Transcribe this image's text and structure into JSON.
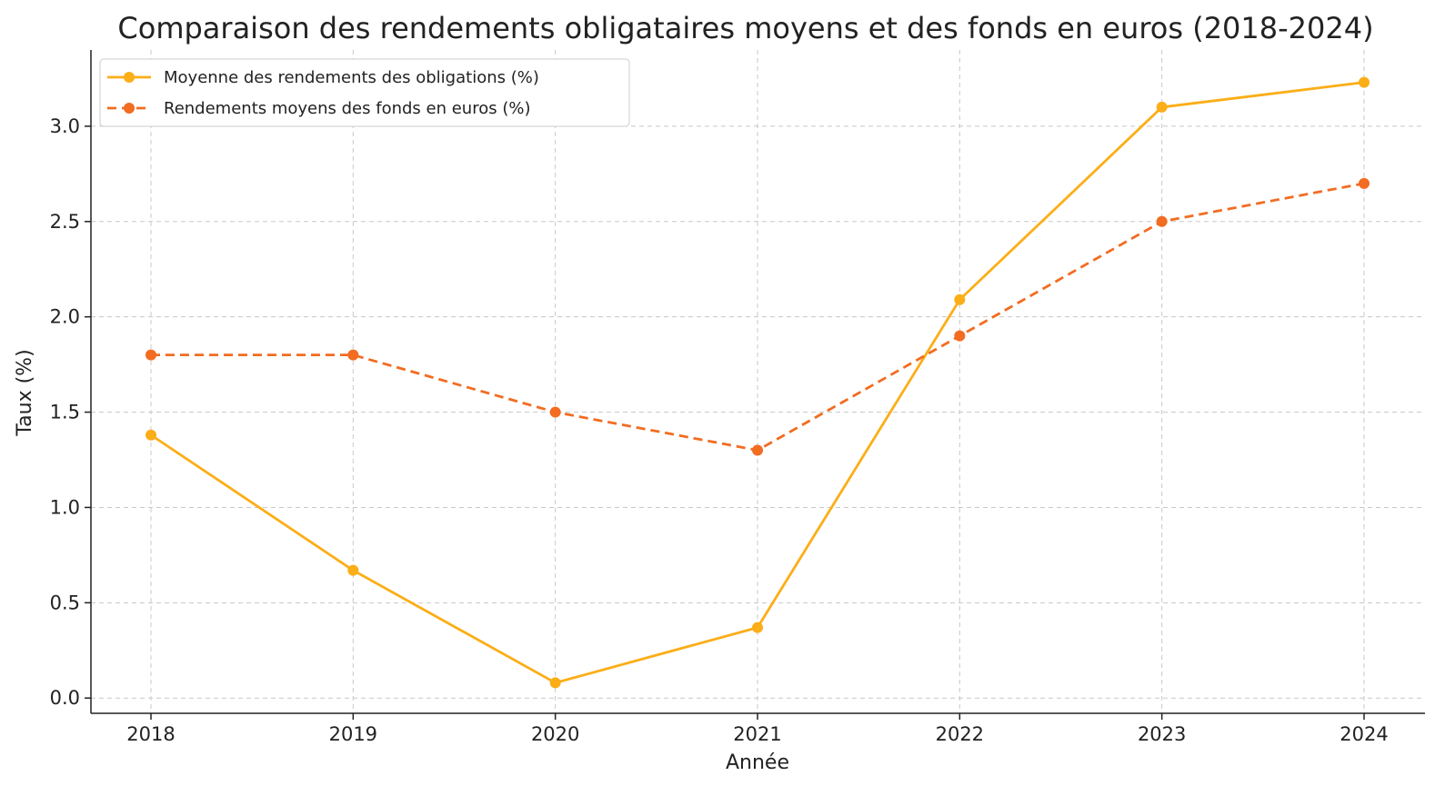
{
  "chart_data": {
    "type": "line",
    "title": "Comparaison des rendements obligataires moyens et des fonds en euros (2018-2024)",
    "xlabel": "Année",
    "ylabel": "Taux (%)",
    "x": [
      "2018",
      "2019",
      "2020",
      "2021",
      "2022",
      "2023",
      "2024"
    ],
    "ylim": [
      -0.08,
      3.4
    ],
    "yticks": [
      "0.0",
      "0.5",
      "1.0",
      "1.5",
      "2.0",
      "2.5",
      "3.0"
    ],
    "grid": true,
    "legend_position": "top-left",
    "series": [
      {
        "name": "Moyenne des rendements des obligations (%)",
        "values": [
          1.38,
          0.67,
          0.08,
          0.37,
          2.09,
          3.1,
          3.23
        ],
        "color": "#FBAE17",
        "line_style": "solid",
        "marker": "circle"
      },
      {
        "name": "Rendements moyens des fonds en euros (%)",
        "values": [
          1.8,
          1.8,
          1.5,
          1.3,
          1.9,
          2.5,
          2.7
        ],
        "color": "#F26C21",
        "line_style": "dashed",
        "marker": "circle"
      }
    ]
  }
}
